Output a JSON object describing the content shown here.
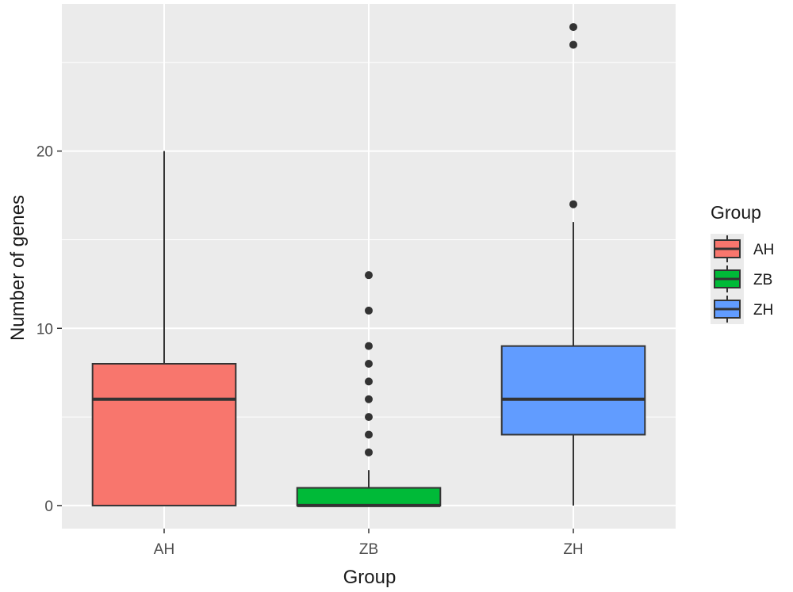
{
  "chart_data": {
    "type": "boxplot",
    "xlabel": "Group",
    "ylabel": "Number of genes",
    "categories": [
      "AH",
      "ZB",
      "ZH"
    ],
    "ylim": [
      -1.3,
      28.3
    ],
    "yticks": [
      0,
      10,
      20
    ],
    "grid": true,
    "legend": {
      "title": "Group",
      "position": "right",
      "entries": [
        "AH",
        "ZB",
        "ZH"
      ]
    },
    "series": [
      {
        "name": "AH",
        "color": "#F8766D",
        "min": 0,
        "q1": 0,
        "median": 6,
        "q3": 8,
        "max": 20,
        "outliers": []
      },
      {
        "name": "ZB",
        "color": "#00BA38",
        "min": 0,
        "q1": 0,
        "median": 0,
        "q3": 1,
        "max": 2,
        "outliers": [
          3,
          4,
          5,
          6,
          7,
          8,
          9,
          11,
          13
        ]
      },
      {
        "name": "ZH",
        "color": "#619CFF",
        "min": 0,
        "q1": 4,
        "median": 6,
        "q3": 9,
        "max": 16,
        "outliers": [
          17,
          26,
          27
        ]
      }
    ],
    "colors": {
      "panel": "#EBEBEB",
      "grid": "#FFFFFF",
      "outline": "#333333"
    }
  }
}
